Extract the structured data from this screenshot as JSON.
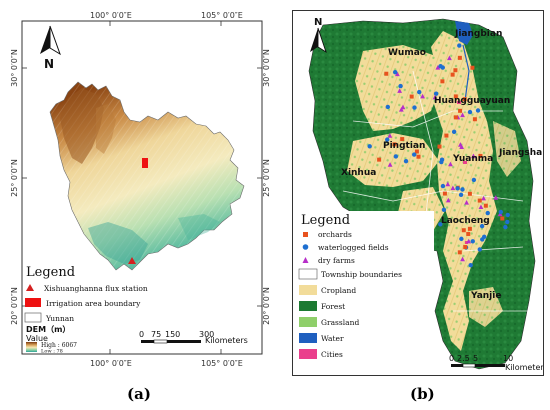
{
  "panel_a": {
    "coords_top": [
      "100° 0′0″E",
      "105° 0′0″E"
    ],
    "coords_bottom": [
      "100° 0′0″E",
      "105° 0′0″E"
    ],
    "coords_left": [
      "30° 0′0″N",
      "25° 0′0″N",
      "20° 0′0″N"
    ],
    "coords_right": [
      "30° 0′0″N",
      "25° 0′0″N",
      "20° 0′0″N"
    ],
    "north_label": "N",
    "legend": {
      "title": "Legend",
      "items": [
        {
          "label": "Xishuanghanna flux station",
          "symbol": "triangle",
          "color": "#d42020"
        },
        {
          "label": "Irrigation area boundary",
          "symbol": "rect",
          "color": "#ee1111"
        },
        {
          "label": "Yunnan",
          "symbol": "rect-outline",
          "color": "#ffffff"
        }
      ],
      "dem_title": "DEM（m）",
      "value_label": "Value",
      "high_label": "High : 6067",
      "low_label": "Low : 78"
    },
    "scalebar": {
      "ticks": [
        "0",
        "75",
        "150",
        "300"
      ],
      "unit": "Kilometers"
    },
    "caption": "(a)"
  },
  "panel_b": {
    "north_label": "N",
    "places": [
      "Jiangbian",
      "Wumao",
      "Huangguayuan",
      "Pingtian",
      "Jiangshan",
      "Yuanma",
      "Xinhua",
      "Laocheng",
      "Yanjie"
    ],
    "legend": {
      "title": "Legend",
      "items": [
        {
          "label": "orchards",
          "symbol": "square",
          "color": "#e8521e"
        },
        {
          "label": "waterlogged fields",
          "symbol": "circle",
          "color": "#1e6fd0"
        },
        {
          "label": "dry farms",
          "symbol": "triangle",
          "color": "#b62ec8"
        },
        {
          "label": "Township boundaries",
          "symbol": "rect-outline",
          "color": "#ffffff"
        },
        {
          "label": "Cropland",
          "symbol": "rect",
          "color": "#f2dc9a"
        },
        {
          "label": "Forest",
          "symbol": "rect",
          "color": "#1c7a32"
        },
        {
          "label": "Grassland",
          "symbol": "rect",
          "color": "#8fcf6a"
        },
        {
          "label": "Water",
          "symbol": "rect",
          "color": "#1f5fbf"
        },
        {
          "label": "Cities",
          "symbol": "rect",
          "color": "#ea3f8c"
        }
      ]
    },
    "scalebar": {
      "ticks": [
        "0",
        "2.5",
        "5",
        "10"
      ],
      "unit": "Kilometers"
    },
    "caption": "(b)"
  }
}
